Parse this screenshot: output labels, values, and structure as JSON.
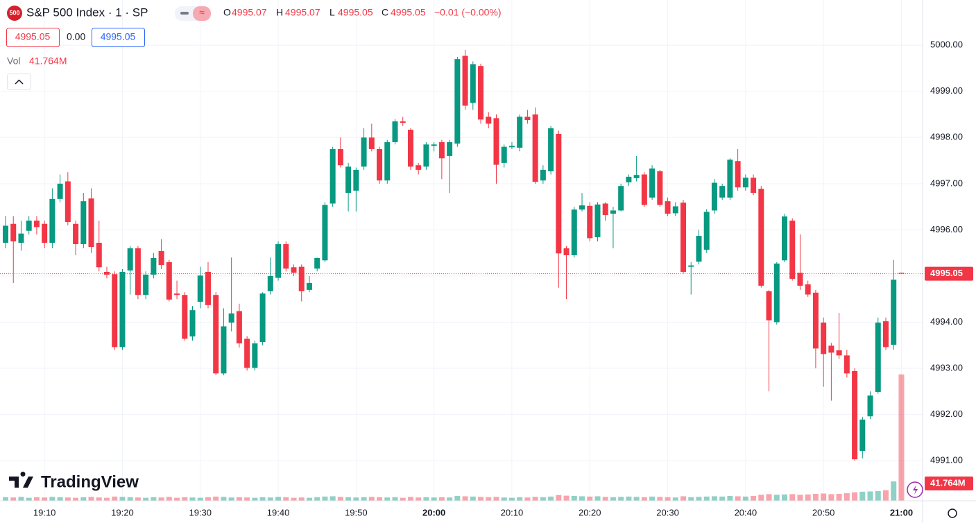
{
  "header": {
    "badge": "500",
    "title": "S&P 500 Index · 1 · SP",
    "o_label": "O",
    "o_value": "4995.07",
    "h_label": "H",
    "h_value": "4995.07",
    "l_label": "L",
    "l_value": "4995.05",
    "c_label": "C",
    "c_value": "4995.05",
    "change": "−0.01 (−0.00%)",
    "bid": "4995.05",
    "spread": "0.00",
    "ask": "4995.05",
    "vol_label": "Vol",
    "vol_value": "41.764M",
    "brand": "TradingView"
  },
  "chart_data": {
    "type": "candlestick",
    "up_color": "#089981",
    "down_color": "#f23645",
    "grid": true,
    "categories": [
      null,
      null,
      null,
      null,
      null,
      "19:10",
      null,
      null,
      null,
      null,
      null,
      null,
      null,
      null,
      null,
      "19:20",
      null,
      null,
      null,
      null,
      null,
      null,
      null,
      null,
      null,
      "19:30",
      null,
      null,
      null,
      null,
      null,
      null,
      null,
      null,
      null,
      "19:40",
      null,
      null,
      null,
      null,
      null,
      null,
      null,
      null,
      null,
      "19:50",
      null,
      null,
      null,
      null,
      null,
      null,
      null,
      null,
      null,
      "20:00",
      null,
      null,
      null,
      null,
      null,
      null,
      null,
      null,
      null,
      "20:10",
      null,
      null,
      null,
      null,
      null,
      null,
      null,
      null,
      null,
      "20:20",
      null,
      null,
      null,
      null,
      null,
      null,
      null,
      null,
      null,
      "20:30",
      null,
      null,
      null,
      null,
      null,
      null,
      null,
      null,
      null,
      "20:40",
      null,
      null,
      null,
      null,
      null,
      null,
      null,
      null,
      null,
      "20:50",
      null,
      null,
      null,
      null,
      null,
      null,
      null,
      null,
      null,
      "21:00"
    ],
    "open": [
      4995.72,
      4996.13,
      4995.72,
      4995.98,
      4996.2,
      4996.13,
      4995.72,
      4996.67,
      4997.05,
      4996.13,
      4995.69,
      4996.68,
      4995.72,
      4995.09,
      4995.04,
      4993.46,
      4995.12,
      4995.6,
      4994.59,
      4995.03,
      4995.54,
      4995.3,
      4994.62,
      4994.59,
      4993.69,
      4994.44,
      4995.09,
      4994.59,
      4992.89,
      4993.99,
      4994.24,
      4993.64,
      4993.01,
      4993.57,
      4994.67,
      4994.96,
      4995.69,
      4995.19,
      4995.2,
      4994.7,
      4995.16,
      4995.34,
      4996.57,
      4997.75,
      4996.8,
      4996.85,
      4997.37,
      4998.0,
      4997.75,
      4997.07,
      4997.9,
      4998.35,
      4998.17,
      4997.4,
      4997.37,
      4997.82,
      4997.9,
      4997.6,
      4997.87,
      4999.77,
      4998.75,
      4999.55,
      4998.45,
      4998.42,
      4997.45,
      4997.79,
      4997.78,
      4998.45,
      4998.5,
      4997.07,
      4997.27,
      4998.08,
      4995.6,
      4995.45,
      4996.44,
      4996.52,
      4995.84,
      4996.57,
      4996.35,
      4996.42,
      4997.03,
      4997.12,
      4997.2,
      4996.7,
      4997.27,
      4996.62,
      4996.36,
      4996.59,
      4995.2,
      4995.31,
      4995.57,
      4996.42,
      4996.7,
      4996.7,
      4997.49,
      4996.92,
      4997.13,
      4996.89,
      4994.67,
      4994.0,
      4995.34,
      4996.2,
      4995.07,
      4994.82,
      4994.64,
      4993.99,
      4993.49,
      4993.39,
      4993.28,
      4992.94,
      4991.21,
      4991.96,
      4992.49,
      4994.02,
      4993.51,
      4995.07
    ],
    "high": [
      4996.3,
      4996.3,
      4996.2,
      4996.3,
      4996.3,
      4996.2,
      4996.9,
      4997.2,
      4997.25,
      4996.2,
      4996.8,
      4996.9,
      4996.2,
      4995.2,
      4995.1,
      4995.15,
      4995.65,
      4995.65,
      4995.1,
      4995.5,
      4995.8,
      4995.35,
      4994.9,
      4994.65,
      4994.35,
      4995.2,
      4995.3,
      4994.65,
      4994.3,
      4995.4,
      4994.4,
      4993.7,
      4993.6,
      4994.65,
      4995.4,
      4995.75,
      4995.75,
      4995.25,
      4995.25,
      4995.0,
      4995.4,
      4996.6,
      4997.8,
      4998.0,
      4997.45,
      4997.35,
      4998.2,
      4998.3,
      4997.8,
      4997.95,
      4998.4,
      4998.45,
      4998.2,
      4997.45,
      4997.9,
      4997.9,
      4997.95,
      4997.95,
      4999.75,
      4999.9,
      4999.65,
      4999.6,
      4998.55,
      4998.5,
      4997.85,
      4997.9,
      4998.5,
      4998.6,
      4998.65,
      4997.4,
      4998.25,
      4998.15,
      4995.65,
      4996.5,
      4996.8,
      4996.6,
      4996.6,
      4996.6,
      4996.5,
      4997.0,
      4997.2,
      4997.6,
      4997.25,
      4997.4,
      4997.3,
      4996.7,
      4996.6,
      4996.65,
      4995.3,
      4996.0,
      4996.45,
      4997.1,
      4997.0,
      4997.55,
      4997.75,
      4997.2,
      4997.2,
      4996.95,
      4994.7,
      4995.3,
      4996.35,
      4996.25,
      4995.9,
      4994.9,
      4994.7,
      4994.1,
      4993.55,
      4994.2,
      4993.4,
      4993.0,
      4991.95,
      4992.5,
      4994.1,
      4994.1,
      4995.35,
      4995.07
    ],
    "low": [
      4995.6,
      4994.85,
      4995.55,
      4995.9,
      4995.9,
      4995.6,
      4995.6,
      4996.6,
      4996.1,
      4995.45,
      4995.6,
      4995.5,
      4995.1,
      4994.95,
      4993.4,
      4993.4,
      4994.6,
      4994.5,
      4994.5,
      4994.95,
      4995.15,
      4994.45,
      4994.5,
      4993.6,
      4993.6,
      4994.3,
      4994.3,
      4992.85,
      4992.85,
      4993.8,
      4993.45,
      4992.95,
      4992.95,
      4993.5,
      4994.6,
      4994.9,
      4995.1,
      4995.0,
      4994.45,
      4994.65,
      4995.1,
      4995.3,
      4996.5,
      4997.35,
      4996.4,
      4996.4,
      4997.3,
      4997.7,
      4997.0,
      4997.0,
      4997.85,
      4998.25,
      4997.3,
      4997.2,
      4997.3,
      4997.7,
      4997.1,
      4996.8,
      4997.8,
      4998.6,
      4998.6,
      4998.3,
      4998.2,
      4997.0,
      4997.35,
      4997.75,
      4997.7,
      4998.3,
      4997.0,
      4997.0,
      4997.2,
      4994.75,
      4994.5,
      4995.4,
      4996.4,
      4995.75,
      4995.75,
      4996.2,
      4995.6,
      4996.4,
      4996.95,
      4997.05,
      4996.5,
      4996.65,
      4996.5,
      4996.3,
      4996.3,
      4995.05,
      4994.6,
      4995.25,
      4995.5,
      4996.35,
      4996.65,
      4996.65,
      4996.85,
      4996.85,
      4996.75,
      4994.75,
      4992.5,
      4993.95,
      4995.3,
      4994.9,
      4994.7,
      4994.55,
      4993.0,
      4992.6,
      4992.3,
      4993.2,
      4992.8,
      4991.0,
      4991.05,
      4991.9,
      4992.45,
      4993.4,
      4993.4,
      4995.05
    ],
    "close": [
      4996.09,
      4995.75,
      4995.92,
      4996.2,
      4996.06,
      4995.72,
      4996.67,
      4997.0,
      4996.17,
      4995.69,
      4996.62,
      4995.63,
      4995.19,
      4995.03,
      4993.46,
      4995.09,
      4995.6,
      4994.59,
      4995.03,
      4995.39,
      4995.24,
      4994.49,
      4994.59,
      4993.64,
      4994.26,
      4995.01,
      4994.37,
      4992.89,
      4993.91,
      4994.19,
      4993.54,
      4993.01,
      4993.54,
      4994.62,
      4995.0,
      4995.69,
      4995.16,
      4995.07,
      4994.67,
      4994.85,
      4995.39,
      4996.54,
      4997.75,
      4997.4,
      4997.37,
      4997.3,
      4998.0,
      4997.75,
      4997.07,
      4997.9,
      4998.35,
      4998.32,
      4997.37,
      4997.3,
      4997.85,
      4997.85,
      4997.55,
      4997.9,
      4999.7,
      4998.69,
      4999.59,
      4998.39,
      4998.3,
      4997.41,
      4997.8,
      4997.82,
      4998.45,
      4998.38,
      4997.04,
      4997.3,
      4998.2,
      4995.49,
      4995.45,
      4996.44,
      4996.53,
      4995.82,
      4996.55,
      4996.32,
      4996.42,
      4996.95,
      4997.15,
      4997.19,
      4996.54,
      4997.33,
      4996.54,
      4996.35,
      4996.51,
      4995.09,
      4995.23,
      4995.87,
      4996.39,
      4997.02,
      4996.95,
      4997.52,
      4996.92,
      4997.13,
      4996.8,
      4994.79,
      4994.04,
      4995.27,
      4996.29,
      4994.94,
      4994.79,
      4994.6,
      4993.43,
      4993.31,
      4993.34,
      4993.28,
      4992.89,
      4991.03,
      4991.89,
      4992.41,
      4993.99,
      4993.46,
      4994.92,
      4995.05
    ],
    "ylim": [
      4990.13,
      5000.98
    ],
    "yticks": [
      {
        "value": 4991,
        "label": "4991.00"
      },
      {
        "value": 4992,
        "label": "4992.00"
      },
      {
        "value": 4993,
        "label": "4993.00"
      },
      {
        "value": 4994,
        "label": "4994.00"
      },
      {
        "value": 4995,
        "label": "4995.00"
      },
      {
        "value": 4996,
        "label": "4996.00"
      },
      {
        "value": 4997,
        "label": "4997.00"
      },
      {
        "value": 4998,
        "label": "4998.00"
      },
      {
        "value": 4999,
        "label": "4999.00"
      },
      {
        "value": 5000,
        "label": "5000.00"
      }
    ],
    "last_price": 4995.05,
    "volume": {
      "ylim": [
        0,
        55
      ],
      "last_label": "41.764M",
      "values": [
        1.2,
        1.1,
        1.3,
        1.0,
        1.2,
        1.1,
        1.3,
        1.2,
        1.1,
        1.0,
        1.2,
        1.3,
        1.1,
        1.0,
        1.4,
        1.3,
        1.2,
        1.1,
        1.0,
        1.2,
        1.1,
        1.3,
        1.0,
        1.2,
        1.1,
        1.0,
        1.2,
        1.4,
        1.3,
        1.1,
        1.2,
        1.1,
        1.0,
        1.2,
        1.1,
        1.3,
        1.2,
        1.0,
        1.1,
        1.0,
        1.2,
        1.4,
        1.5,
        1.3,
        1.2,
        1.1,
        1.2,
        1.3,
        1.2,
        1.1,
        1.2,
        1.0,
        1.3,
        1.1,
        1.2,
        1.1,
        1.2,
        1.1,
        1.6,
        1.5,
        1.4,
        1.3,
        1.2,
        1.3,
        1.1,
        1.0,
        1.2,
        1.1,
        1.3,
        1.2,
        1.4,
        1.9,
        1.7,
        1.6,
        1.5,
        1.4,
        1.5,
        1.3,
        1.2,
        1.3,
        1.4,
        1.3,
        1.2,
        1.4,
        1.3,
        1.2,
        1.1,
        1.5,
        1.2,
        1.3,
        1.4,
        1.5,
        1.4,
        1.6,
        1.5,
        1.4,
        1.6,
        2.0,
        2.2,
        2.0,
        2.1,
        2.2,
        2.0,
        2.1,
        2.3,
        2.4,
        2.2,
        2.3,
        2.5,
        2.8,
        3.0,
        3.1,
        3.2,
        3.5,
        6.4,
        41.764
      ]
    }
  }
}
